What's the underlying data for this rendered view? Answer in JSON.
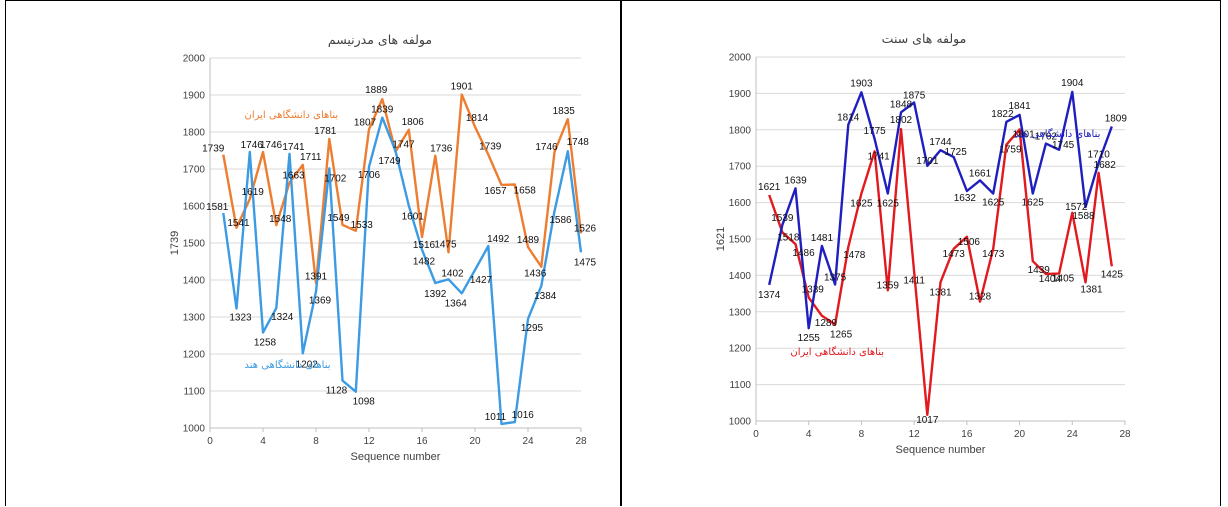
{
  "chart_data": [
    {
      "type": "line",
      "title": "مولفه های مدرنیسم",
      "xlabel": "Sequence number",
      "ylabel": "1739",
      "xlim": [
        0,
        28
      ],
      "ylim": [
        1000,
        2000
      ],
      "xticks": [
        0,
        4,
        8,
        12,
        16,
        20,
        24,
        28
      ],
      "yticks": [
        1000,
        1100,
        1200,
        1300,
        1400,
        1500,
        1600,
        1700,
        1800,
        1900,
        2000
      ],
      "grid": true,
      "series": [
        {
          "name": "بناهای دانشگاهی ایران",
          "color": "#ED7D31",
          "legend_anchor": [
            2,
            1838
          ],
          "x": [
            1,
            2,
            3,
            4,
            5,
            6,
            7,
            8,
            9,
            10,
            11,
            12,
            13,
            14,
            15,
            16,
            17,
            18,
            19,
            20,
            21,
            22,
            23,
            24,
            25,
            26,
            27,
            28
          ],
          "values": [
            1739,
            1541,
            1619,
            1746,
            1548,
            1663,
            1711,
            1391,
            1781,
            1549,
            1533,
            1807,
            1889,
            1747,
            1806,
            1516,
            1736,
            1475,
            1901,
            1814,
            1739,
            1657,
            1658,
            1489,
            1436,
            1746,
            1835,
            1526
          ],
          "label_dx": [
            -10,
            2,
            3,
            8,
            4,
            4,
            8,
            0,
            -4,
            -4,
            6,
            -4,
            -6,
            8,
            4,
            2,
            6,
            -3,
            0,
            2,
            2,
            -6,
            10,
            0,
            -6,
            -8,
            -4,
            4
          ],
          "label_dy": [
            -3,
            -2,
            -4,
            -4,
            -3,
            -4,
            -5,
            -4,
            -5,
            -4,
            -3,
            -4,
            -6,
            -4,
            -5,
            3,
            -4,
            -5,
            -5,
            -6,
            -5,
            1,
            1,
            -4,
            2,
            -2,
            -5,
            -2
          ]
        },
        {
          "name": "بناهای دانشگاهی هند",
          "color": "#3C9BE3",
          "legend_anchor": [
            2,
            1162
          ],
          "x": [
            1,
            2,
            3,
            4,
            5,
            6,
            7,
            8,
            9,
            10,
            11,
            12,
            13,
            14,
            15,
            16,
            17,
            18,
            19,
            20,
            21,
            22,
            23,
            24,
            25,
            26,
            27,
            28
          ],
          "values": [
            1581,
            1323,
            1746,
            1258,
            1324,
            1741,
            1202,
            1369,
            1702,
            1128,
            1098,
            1706,
            1839,
            1749,
            1601,
            1482,
            1392,
            1402,
            1364,
            1427,
            1492,
            1011,
            1016,
            1295,
            1384,
            1586,
            1748,
            1475
          ],
          "label_dx": [
            -6,
            4,
            2,
            2,
            6,
            4,
            4,
            4,
            6,
            -6,
            8,
            0,
            0,
            -6,
            4,
            2,
            0,
            4,
            -6,
            6,
            10,
            -6,
            8,
            4,
            4,
            6,
            10,
            4
          ],
          "label_dy": [
            -3,
            4,
            -4,
            5,
            4,
            -4,
            6,
            4,
            5,
            5,
            5,
            3,
            -5,
            5,
            6,
            7,
            6,
            -3,
            5,
            5,
            -4,
            -4,
            -4,
            4,
            5,
            4,
            -6,
            5
          ]
        }
      ]
    },
    {
      "type": "line",
      "title": "مولفه های سنت",
      "xlabel": "Sequence number",
      "ylabel": "1621",
      "xlim": [
        0,
        28
      ],
      "ylim": [
        1000,
        2000
      ],
      "xticks": [
        0,
        4,
        8,
        12,
        16,
        20,
        24,
        28
      ],
      "yticks": [
        1000,
        1100,
        1200,
        1300,
        1400,
        1500,
        1600,
        1700,
        1800,
        1900,
        2000
      ],
      "grid": true,
      "series": [
        {
          "name": "بناهای دانشگاهی ایران",
          "color": "#E2191E",
          "legend_anchor": [
            2,
            1182
          ],
          "x": [
            1,
            2,
            3,
            4,
            5,
            6,
            7,
            8,
            9,
            10,
            11,
            12,
            13,
            14,
            15,
            16,
            17,
            18,
            19,
            20,
            21,
            22,
            23,
            24,
            25,
            26,
            27
          ],
          "values": [
            1621,
            1518,
            1486,
            1339,
            1289,
            1265,
            1478,
            1625,
            1741,
            1359,
            1802,
            1411,
            1017,
            1381,
            1473,
            1506,
            1328,
            1473,
            1759,
            1801,
            1439,
            1404,
            1405,
            1572,
            1381,
            1682,
            1425
          ],
          "label_dx": [
            0,
            6,
            8,
            4,
            4,
            6,
            6,
            0,
            4,
            0,
            0,
            0,
            0,
            0,
            0,
            2,
            0,
            0,
            4,
            4,
            6,
            4,
            4,
            4,
            6,
            6,
            0
          ],
          "label_dy": [
            -5,
            0,
            4,
            -5,
            2,
            5,
            3,
            5,
            0,
            -2,
            -6,
            4,
            0,
            5,
            0,
            0,
            -2,
            0,
            0,
            0,
            4,
            0,
            0,
            -3,
            2,
            -5,
            3
          ]
        },
        {
          "name": "بناهای دانشگاهی هند",
          "color": "#1F1FBF",
          "legend_anchor": [
            19,
            1780
          ],
          "x": [
            1,
            2,
            3,
            4,
            5,
            6,
            7,
            8,
            9,
            10,
            11,
            12,
            13,
            14,
            15,
            16,
            17,
            18,
            19,
            20,
            21,
            22,
            23,
            24,
            25,
            26,
            27
          ],
          "values": [
            1374,
            1539,
            1639,
            1255,
            1481,
            1375,
            1814,
            1903,
            1775,
            1625,
            1848,
            1875,
            1701,
            1744,
            1725,
            1632,
            1661,
            1625,
            1822,
            1841,
            1625,
            1762,
            1745,
            1904,
            1588,
            1710,
            1809
          ],
          "label_dx": [
            0,
            0,
            0,
            0,
            0,
            0,
            0,
            0,
            0,
            0,
            0,
            0,
            0,
            0,
            2,
            -2,
            0,
            0,
            -4,
            0,
            0,
            0,
            4,
            0,
            -2,
            0,
            4
          ],
          "label_dy": [
            5,
            -4,
            -5,
            5,
            -5,
            -4,
            -4,
            -6,
            -5,
            5,
            -5,
            -4,
            -2,
            -5,
            -2,
            2,
            -4,
            4,
            -5,
            -6,
            4,
            -4,
            -2,
            -6,
            4,
            -5,
            -5
          ]
        }
      ]
    }
  ]
}
